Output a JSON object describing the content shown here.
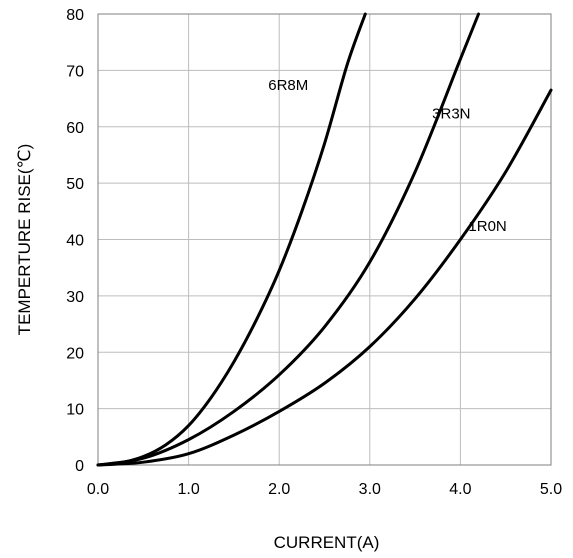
{
  "chart_data": {
    "type": "line",
    "title": "",
    "xlabel": "CURRENT(A)",
    "ylabel": "TEMPERTURE RISE(℃)",
    "xlim": [
      0,
      5
    ],
    "ylim": [
      0,
      80
    ],
    "x_ticks": [
      "0.0",
      "1.0",
      "2.0",
      "3.0",
      "4.0",
      "5.0"
    ],
    "y_ticks": [
      "0",
      "10",
      "20",
      "30",
      "40",
      "50",
      "60",
      "70",
      "80"
    ],
    "grid": true,
    "legend": "none",
    "series": [
      {
        "name": "6R8M",
        "x": [
          0,
          0.25,
          0.5,
          0.75,
          1.0,
          1.25,
          1.5,
          1.75,
          2.0,
          2.25,
          2.5,
          2.75,
          2.95
        ],
        "y": [
          0,
          0.4,
          1.5,
          3.6,
          7.0,
          12.0,
          18.3,
          25.8,
          34.5,
          45.0,
          57.0,
          71.0,
          80.0
        ]
      },
      {
        "name": "3R3N",
        "x": [
          0,
          0.5,
          1.0,
          1.5,
          2.0,
          2.5,
          3.0,
          3.5,
          4.0,
          4.2
        ],
        "y": [
          0,
          1.2,
          4.5,
          9.5,
          16.0,
          24.5,
          36.0,
          52.0,
          72.0,
          80.0
        ]
      },
      {
        "name": "1R0N",
        "x": [
          0,
          0.5,
          1.0,
          1.5,
          2.0,
          2.5,
          3.0,
          3.5,
          4.0,
          4.5,
          5.0
        ],
        "y": [
          0,
          0.5,
          2.0,
          5.3,
          9.5,
          14.5,
          21.0,
          29.5,
          40.0,
          52.0,
          66.5
        ]
      }
    ],
    "labels": [
      {
        "text": "6R8M",
        "x": 2.1,
        "y": 66.5
      },
      {
        "text": "3R3N",
        "x": 3.9,
        "y": 61.5
      },
      {
        "text": "1R0N",
        "x": 4.3,
        "y": 41.5
      }
    ]
  }
}
